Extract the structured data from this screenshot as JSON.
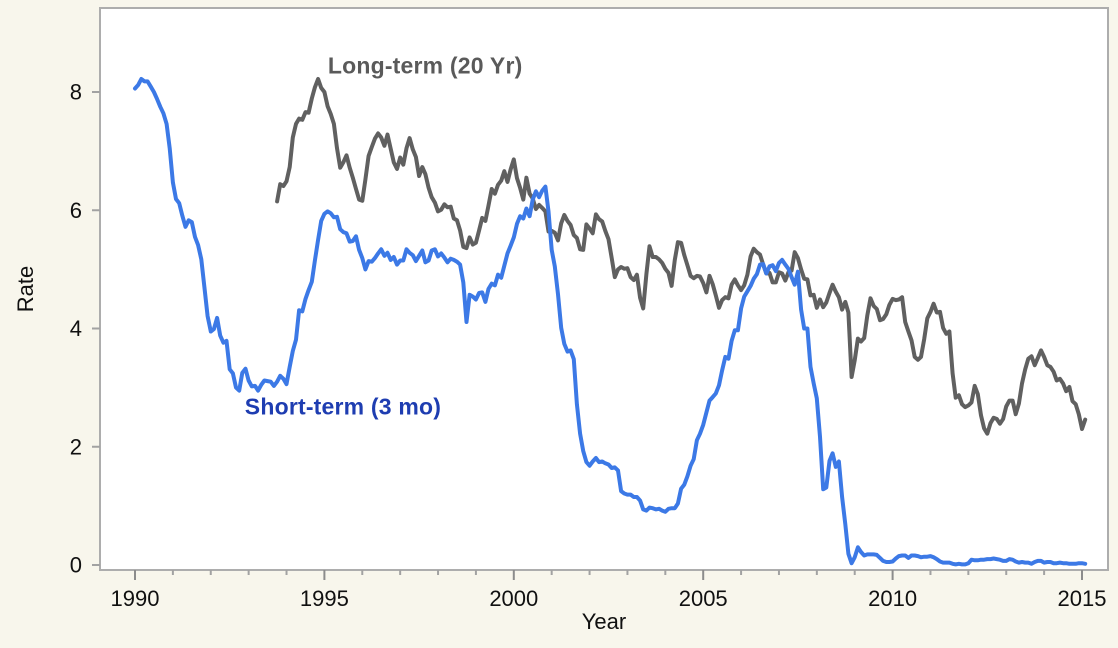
{
  "figure": {
    "background_color": "#f8f6ec",
    "plot_background_color": "#ffffff",
    "plot_border_color": "#adadad",
    "tick_color": "#989898",
    "tick_label_color": "#101010"
  },
  "chart_data": {
    "type": "line",
    "title": "",
    "xlabel": "Year",
    "ylabel": "Rate",
    "xlim": [
      1989.08,
      2015.68
    ],
    "ylim": [
      -0.08,
      9.42
    ],
    "x_major_ticks": [
      1990,
      1995,
      2000,
      2005,
      2010,
      2015
    ],
    "x_minor_tick_interval": 1,
    "y_ticks": [
      0,
      2,
      4,
      6,
      8
    ],
    "grid": false,
    "legend_position": "inline-labels",
    "series": [
      {
        "id": "long-term",
        "name": "Long-term (20 Yr)",
        "color": "#606060",
        "start_year": 1993.75,
        "points_per_year": 12,
        "values": [
          6.15,
          6.44,
          6.41,
          6.49,
          6.73,
          7.23,
          7.46,
          7.55,
          7.53,
          7.66,
          7.65,
          7.89,
          8.08,
          8.22,
          8.07,
          8.0,
          7.76,
          7.63,
          7.46,
          7.05,
          6.72,
          6.81,
          6.93,
          6.72,
          6.55,
          6.36,
          6.18,
          6.16,
          6.52,
          6.92,
          7.07,
          7.21,
          7.3,
          7.23,
          7.09,
          7.28,
          7.04,
          6.81,
          6.7,
          6.89,
          6.77,
          7.05,
          7.22,
          7.03,
          6.9,
          6.58,
          6.73,
          6.61,
          6.38,
          6.22,
          6.13,
          5.98,
          6.01,
          6.1,
          6.05,
          6.06,
          5.86,
          5.83,
          5.66,
          5.38,
          5.36,
          5.54,
          5.42,
          5.45,
          5.66,
          5.87,
          5.82,
          6.08,
          6.36,
          6.28,
          6.43,
          6.5,
          6.66,
          6.48,
          6.69,
          6.86,
          6.54,
          6.38,
          6.18,
          6.55,
          6.28,
          6.2,
          6.02,
          6.09,
          6.04,
          5.98,
          5.64,
          5.65,
          5.62,
          5.49,
          5.78,
          5.92,
          5.82,
          5.75,
          5.58,
          5.53,
          5.34,
          5.33,
          5.76,
          5.69,
          5.61,
          5.93,
          5.85,
          5.81,
          5.65,
          5.51,
          5.19,
          4.87,
          5.0,
          5.04,
          5.01,
          5.02,
          4.87,
          4.82,
          4.91,
          4.52,
          4.34,
          4.92,
          5.39,
          5.21,
          5.21,
          5.17,
          5.11,
          5.01,
          4.94,
          4.72,
          5.16,
          5.46,
          5.45,
          5.24,
          5.07,
          4.89,
          4.85,
          4.89,
          4.88,
          4.77,
          4.61,
          4.89,
          4.75,
          4.56,
          4.35,
          4.48,
          4.53,
          4.51,
          4.74,
          4.83,
          4.73,
          4.65,
          4.73,
          4.91,
          5.22,
          5.35,
          5.29,
          5.25,
          5.08,
          4.93,
          4.94,
          4.78,
          4.78,
          4.95,
          4.93,
          4.81,
          4.95,
          4.98,
          5.29,
          5.19,
          5.0,
          4.84,
          4.83,
          4.56,
          4.57,
          4.35,
          4.49,
          4.36,
          4.44,
          4.6,
          4.74,
          4.62,
          4.53,
          4.32,
          4.45,
          4.27,
          3.18,
          3.46,
          3.83,
          3.78,
          3.84,
          4.22,
          4.51,
          4.38,
          4.33,
          4.14,
          4.16,
          4.24,
          4.4,
          4.5,
          4.48,
          4.49,
          4.53,
          4.11,
          3.95,
          3.8,
          3.52,
          3.47,
          3.52,
          3.82,
          4.17,
          4.28,
          4.42,
          4.27,
          4.28,
          4.01,
          3.91,
          3.95,
          3.24,
          2.83,
          2.87,
          2.72,
          2.67,
          2.7,
          2.75,
          3.03,
          2.89,
          2.53,
          2.31,
          2.22,
          2.4,
          2.49,
          2.47,
          2.39,
          2.47,
          2.68,
          2.78,
          2.78,
          2.55,
          2.73,
          3.07,
          3.31,
          3.49,
          3.53,
          3.38,
          3.5,
          3.63,
          3.52,
          3.38,
          3.35,
          3.27,
          3.12,
          3.15,
          3.07,
          2.94,
          3.01,
          2.77,
          2.72,
          2.55,
          2.3,
          2.46
        ]
      },
      {
        "id": "short-term",
        "name": "Short-term (3 mo)",
        "color": "#3c79e6",
        "start_year": 1990.0,
        "points_per_year": 12,
        "values": [
          8.06,
          8.12,
          8.22,
          8.18,
          8.18,
          8.09,
          8.0,
          7.88,
          7.75,
          7.64,
          7.46,
          7.05,
          6.47,
          6.19,
          6.12,
          5.91,
          5.72,
          5.83,
          5.8,
          5.55,
          5.41,
          5.17,
          4.7,
          4.21,
          3.95,
          3.99,
          4.18,
          3.88,
          3.76,
          3.79,
          3.31,
          3.24,
          3.0,
          2.95,
          3.25,
          3.32,
          3.12,
          3.02,
          3.03,
          2.95,
          3.05,
          3.12,
          3.11,
          3.1,
          3.03,
          3.1,
          3.2,
          3.15,
          3.06,
          3.35,
          3.62,
          3.81,
          4.31,
          4.29,
          4.5,
          4.65,
          4.79,
          5.15,
          5.5,
          5.82,
          5.94,
          5.98,
          5.95,
          5.88,
          5.89,
          5.68,
          5.63,
          5.61,
          5.47,
          5.48,
          5.56,
          5.33,
          5.19,
          5.0,
          5.14,
          5.13,
          5.19,
          5.27,
          5.34,
          5.23,
          5.28,
          5.16,
          5.21,
          5.08,
          5.15,
          5.15,
          5.34,
          5.28,
          5.24,
          5.14,
          5.23,
          5.32,
          5.12,
          5.15,
          5.32,
          5.34,
          5.22,
          5.27,
          5.2,
          5.12,
          5.18,
          5.16,
          5.13,
          5.08,
          4.78,
          4.11,
          4.57,
          4.54,
          4.49,
          4.6,
          4.61,
          4.45,
          4.67,
          4.76,
          4.73,
          4.91,
          4.86,
          5.06,
          5.27,
          5.4,
          5.54,
          5.77,
          5.9,
          5.86,
          6.03,
          5.9,
          6.18,
          6.32,
          6.22,
          6.33,
          6.4,
          5.98,
          5.33,
          5.05,
          4.58,
          4.01,
          3.74,
          3.61,
          3.63,
          3.48,
          2.72,
          2.22,
          1.93,
          1.74,
          1.68,
          1.75,
          1.81,
          1.74,
          1.75,
          1.72,
          1.7,
          1.64,
          1.65,
          1.6,
          1.25,
          1.21,
          1.19,
          1.19,
          1.15,
          1.15,
          1.09,
          0.94,
          0.92,
          0.97,
          0.96,
          0.94,
          0.95,
          0.92,
          0.9,
          0.95,
          0.96,
          0.96,
          1.04,
          1.29,
          1.36,
          1.5,
          1.68,
          1.79,
          2.11,
          2.22,
          2.37,
          2.58,
          2.78,
          2.84,
          2.9,
          3.04,
          3.29,
          3.52,
          3.49,
          3.79,
          3.97,
          3.97,
          4.34,
          4.54,
          4.63,
          4.72,
          4.84,
          4.92,
          5.08,
          5.09,
          4.93,
          5.05,
          5.07,
          4.97,
          5.11,
          5.16,
          5.08,
          5.01,
          4.87,
          4.74,
          4.96,
          4.32,
          4.0,
          4.0,
          3.35,
          3.07,
          2.82,
          2.17,
          1.28,
          1.31,
          1.76,
          1.89,
          1.66,
          1.75,
          1.15,
          0.69,
          0.19,
          0.03,
          0.13,
          0.3,
          0.22,
          0.16,
          0.18,
          0.18,
          0.18,
          0.17,
          0.12,
          0.07,
          0.05,
          0.05,
          0.06,
          0.11,
          0.15,
          0.16,
          0.16,
          0.12,
          0.16,
          0.16,
          0.15,
          0.13,
          0.14,
          0.14,
          0.15,
          0.13,
          0.1,
          0.06,
          0.04,
          0.04,
          0.04,
          0.02,
          0.01,
          0.02,
          0.01,
          0.01,
          0.03,
          0.09,
          0.08,
          0.08,
          0.09,
          0.09,
          0.1,
          0.1,
          0.11,
          0.1,
          0.09,
          0.07,
          0.07,
          0.1,
          0.09,
          0.06,
          0.04,
          0.05,
          0.04,
          0.04,
          0.02,
          0.05,
          0.07,
          0.07,
          0.04,
          0.05,
          0.05,
          0.03,
          0.03,
          0.04,
          0.03,
          0.03,
          0.02,
          0.02,
          0.02,
          0.03,
          0.03,
          0.02
        ]
      }
    ],
    "annotations": [
      {
        "id": "long-term",
        "text": "Long-term (20 Yr)",
        "x_year": 1997.66,
        "y_value": 8.44,
        "color": "#5a5a5a"
      },
      {
        "id": "short-term",
        "text": "Short-term (3 mo)",
        "x_year": 1995.49,
        "y_value": 2.67,
        "color": "#1e3db1"
      }
    ]
  }
}
